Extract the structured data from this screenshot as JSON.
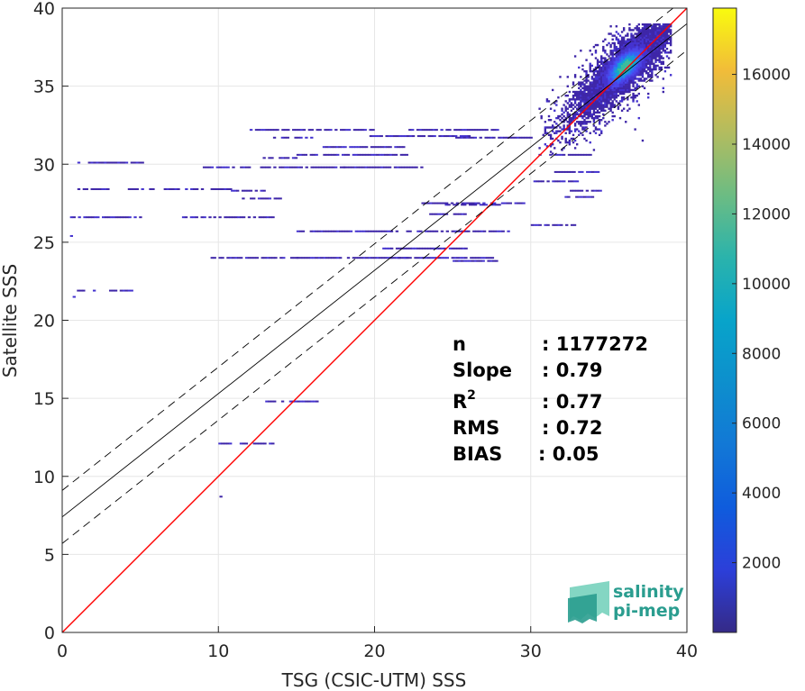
{
  "chart_data": {
    "type": "scatter",
    "subtype": "density-2d-histogram",
    "xlabel": "TSG (CSIC-UTM) SSS",
    "ylabel": "Satellite SSS",
    "xlim": [
      0,
      40
    ],
    "ylim": [
      0,
      40
    ],
    "xticks": [
      0,
      10,
      20,
      30,
      40
    ],
    "yticks": [
      0,
      5,
      10,
      15,
      20,
      25,
      30,
      35,
      40
    ],
    "grid": true,
    "colorbar": {
      "colormap": "parula",
      "range": [
        0,
        17900
      ],
      "ticks": [
        2000,
        4000,
        6000,
        8000,
        10000,
        12000,
        14000,
        16000
      ]
    },
    "reference_line": {
      "type": "1:1",
      "color": "#ff0000"
    },
    "regression": {
      "slope": 0.79,
      "intercept": 7.4,
      "band_offset": 1.7,
      "color": "#000000"
    },
    "stats": [
      {
        "label": "n",
        "value": ": 1177272"
      },
      {
        "label": "Slope",
        "value": ": 0.79"
      },
      {
        "label": "R",
        "sup": "2",
        "value": ": 0.77"
      },
      {
        "label": "RMS",
        "value": ": 0.72"
      },
      {
        "label": "BIAS",
        "value": ": 0.05"
      }
    ],
    "density_segments": [
      [
        0.8,
        4.0,
        30.1
      ],
      [
        2.5,
        5.2,
        30.1
      ],
      [
        0.8,
        3.0,
        28.4
      ],
      [
        4.2,
        6.0,
        28.4
      ],
      [
        6.5,
        9.0,
        28.4
      ],
      [
        9.5,
        10.8,
        28.4
      ],
      [
        10.8,
        13.0,
        28.3
      ],
      [
        0.5,
        5.0,
        26.6
      ],
      [
        7.5,
        9.5,
        26.6
      ],
      [
        9.5,
        13.5,
        26.6
      ],
      [
        0.6,
        2.0,
        21.9
      ],
      [
        3.0,
        4.5,
        21.9
      ],
      [
        0.5,
        0.8,
        21.5
      ],
      [
        0.5,
        0.8,
        25.4
      ],
      [
        9.0,
        12.0,
        29.8
      ],
      [
        12.5,
        18.0,
        29.8
      ],
      [
        18.0,
        23.0,
        29.8
      ],
      [
        12.5,
        15.0,
        30.4
      ],
      [
        15.0,
        22.0,
        30.6
      ],
      [
        16.5,
        22.0,
        31.1
      ],
      [
        12.0,
        20.0,
        32.2
      ],
      [
        13.5,
        16.0,
        31.7
      ],
      [
        19.5,
        26.0,
        31.8
      ],
      [
        22.0,
        28.0,
        32.2
      ],
      [
        25.0,
        30.0,
        31.7
      ],
      [
        9.5,
        15.0,
        24.0
      ],
      [
        15.0,
        22.0,
        24.0
      ],
      [
        20.5,
        26.0,
        24.6
      ],
      [
        21.0,
        27.5,
        24.0
      ],
      [
        25.0,
        28.0,
        23.8
      ],
      [
        15.0,
        21.0,
        25.7
      ],
      [
        21.0,
        28.5,
        25.7
      ],
      [
        23.5,
        26.0,
        26.8
      ],
      [
        24.5,
        28.0,
        27.4
      ],
      [
        23.0,
        29.5,
        27.5
      ],
      [
        30.0,
        32.8,
        26.1
      ],
      [
        11.5,
        14.0,
        27.8
      ],
      [
        13.0,
        16.5,
        14.8
      ],
      [
        10.0,
        13.5,
        12.1
      ],
      [
        9.9,
        10.1,
        8.7
      ],
      [
        30.5,
        34.0,
        30.6
      ],
      [
        31.5,
        34.5,
        29.5
      ],
      [
        30.0,
        33.0,
        28.9
      ],
      [
        32.5,
        34.5,
        28.3
      ],
      [
        32.0,
        34.0,
        27.9
      ]
    ],
    "density_core": {
      "x_range": [
        30.5,
        39.0
      ],
      "y_range": [
        30.5,
        39.0
      ],
      "peak": [
        36.0,
        36.2
      ],
      "peak_count": 17900
    }
  },
  "logo": {
    "line1": "salinity",
    "line2": "pi-mep"
  }
}
